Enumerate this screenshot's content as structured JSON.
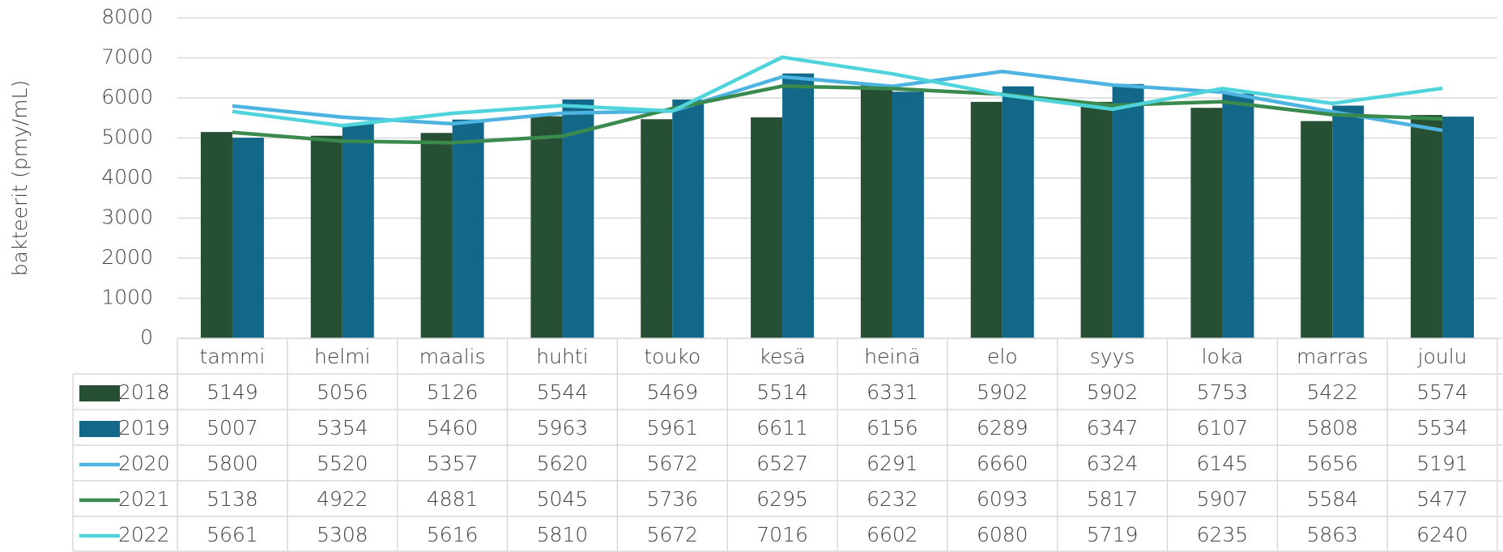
{
  "chart_data": {
    "type": "bar",
    "y_label": "bakteerit (pmy/mL)",
    "categories": [
      "tammi",
      "helmi",
      "maalis",
      "huhti",
      "touko",
      "kesä",
      "heinä",
      "elo",
      "syys",
      "loka",
      "marras",
      "joulu"
    ],
    "series": [
      {
        "name": "2018",
        "type": "bar",
        "color": "#264f33",
        "values": [
          5149,
          5056,
          5126,
          5544,
          5469,
          5514,
          6331,
          5902,
          5902,
          5753,
          5422,
          5574
        ]
      },
      {
        "name": "2019",
        "type": "bar",
        "color": "#136889",
        "values": [
          5007,
          5354,
          5460,
          5963,
          5961,
          6611,
          6156,
          6289,
          6347,
          6107,
          5808,
          5534
        ]
      },
      {
        "name": "2020",
        "type": "line",
        "color": "#4db3e0",
        "values": [
          5800,
          5520,
          5357,
          5620,
          5672,
          6527,
          6291,
          6660,
          6324,
          6145,
          5656,
          5191
        ]
      },
      {
        "name": "2021",
        "type": "line",
        "color": "#3a8a4e",
        "values": [
          5138,
          4922,
          4881,
          5045,
          5736,
          6295,
          6232,
          6093,
          5817,
          5907,
          5584,
          5477
        ]
      },
      {
        "name": "2022",
        "type": "line",
        "color": "#50d4dc",
        "values": [
          5661,
          5308,
          5616,
          5810,
          5672,
          7016,
          6602,
          6080,
          5719,
          6235,
          5863,
          6240
        ]
      }
    ],
    "ylim": [
      0,
      8000
    ],
    "yticks": [
      0,
      1000,
      2000,
      3000,
      4000,
      5000,
      6000,
      7000,
      8000
    ],
    "grid": true,
    "data_table": true
  }
}
